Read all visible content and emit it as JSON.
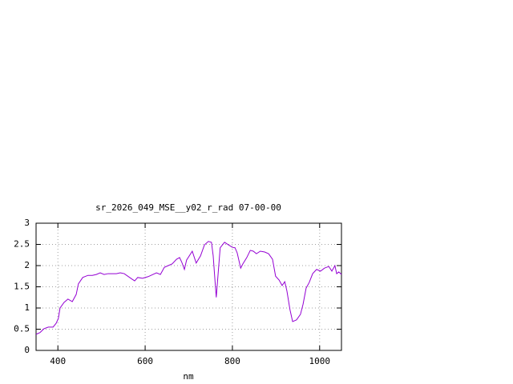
{
  "chart_data": {
    "type": "line",
    "title": "sr_2026_049_MSE__y02_r_rad 07-00-00",
    "xlabel": "nm",
    "xlim": [
      350,
      1050
    ],
    "xticks": [
      400,
      600,
      800,
      1000
    ],
    "ylim": [
      0,
      3
    ],
    "yticks": [
      0,
      0.5,
      1,
      1.5,
      2,
      2.5,
      3
    ],
    "grid": true,
    "series": [
      {
        "color": "#9400d3",
        "x": [
          350,
          359,
          368,
          378,
          389,
          396,
          401,
          405,
          414,
          423,
          433,
          442,
          447,
          457,
          469,
          479,
          488,
          497,
          506,
          515,
          534,
          543,
          552,
          570,
          576,
          583,
          594,
          607,
          626,
          635,
          644,
          653,
          662,
          672,
          679,
          684,
          690,
          695,
          708,
          717,
          727,
          736,
          745,
          752,
          756,
          760,
          763,
          767,
          772,
          782,
          791,
          800,
          806,
          811,
          819,
          824,
          833,
          841,
          848,
          855,
          864,
          874,
          883,
          892,
          899,
          907,
          914,
          920,
          925,
          932,
          938,
          947,
          956,
          962,
          969,
          976,
          984,
          993,
          1002,
          1011,
          1021,
          1028,
          1035,
          1039,
          1044,
          1050
        ],
        "values": [
          0.38,
          0.42,
          0.51,
          0.55,
          0.55,
          0.64,
          0.75,
          1.0,
          1.13,
          1.21,
          1.15,
          1.32,
          1.57,
          1.72,
          1.77,
          1.77,
          1.79,
          1.83,
          1.79,
          1.81,
          1.81,
          1.83,
          1.81,
          1.68,
          1.64,
          1.72,
          1.7,
          1.74,
          1.83,
          1.79,
          1.96,
          2.0,
          2.04,
          2.15,
          2.19,
          2.08,
          1.91,
          2.13,
          2.34,
          2.06,
          2.23,
          2.49,
          2.57,
          2.55,
          2.23,
          1.66,
          1.25,
          1.77,
          2.42,
          2.55,
          2.49,
          2.43,
          2.42,
          2.3,
          1.94,
          2.04,
          2.19,
          2.36,
          2.34,
          2.28,
          2.34,
          2.32,
          2.28,
          2.15,
          1.75,
          1.66,
          1.53,
          1.62,
          1.4,
          0.96,
          0.68,
          0.72,
          0.85,
          1.09,
          1.47,
          1.6,
          1.81,
          1.91,
          1.87,
          1.94,
          1.98,
          1.87,
          2.0,
          1.81,
          1.85,
          1.79
        ]
      }
    ]
  }
}
